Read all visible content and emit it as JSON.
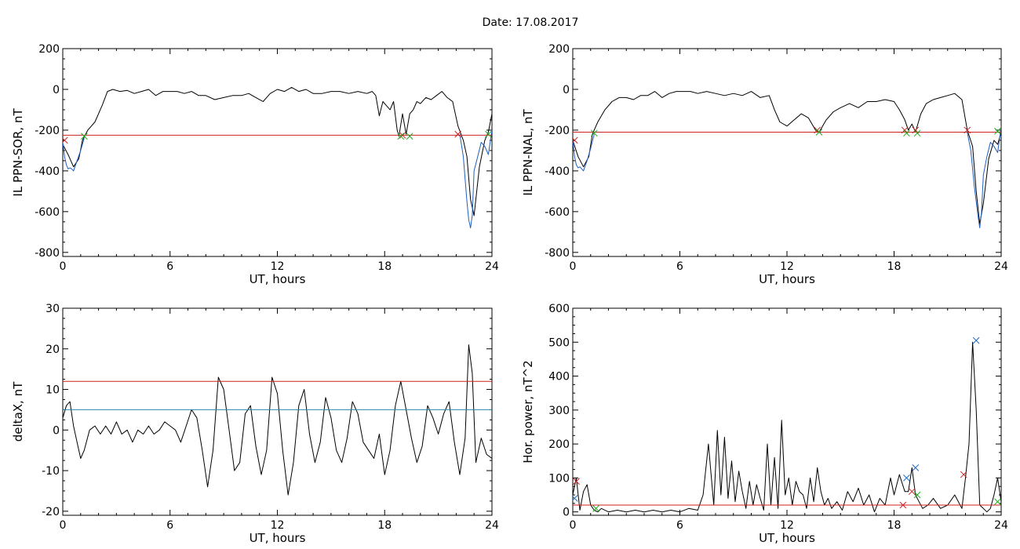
{
  "title": "Date:  17.08.2017",
  "chart_data": [
    {
      "id": "p1",
      "type": "line",
      "xlabel": "UT, hours",
      "ylabel": "IL PPN-SOR, nT",
      "xlim": [
        0,
        24
      ],
      "ylim": [
        -820,
        200
      ],
      "xticks": [
        0,
        6,
        12,
        18,
        24
      ],
      "yticks": [
        200,
        0,
        -200,
        -400,
        -600,
        -800
      ],
      "series": [
        {
          "color": "#000000",
          "x": [
            0,
            0.3,
            0.6,
            0.9,
            1.1,
            1.4,
            1.8,
            2.2,
            2.5,
            2.8,
            3.2,
            3.6,
            4.0,
            4.4,
            4.8,
            5.2,
            5.6,
            6.0,
            6.4,
            6.8,
            7.2,
            7.6,
            8.0,
            8.5,
            9.0,
            9.5,
            10.0,
            10.4,
            10.8,
            11.2,
            11.6,
            12.0,
            12.4,
            12.8,
            13.2,
            13.6,
            14.0,
            14.5,
            15.0,
            15.5,
            16.0,
            16.5,
            17.0,
            17.3,
            17.5,
            17.7,
            17.9,
            18.1,
            18.3,
            18.5,
            18.7,
            18.8,
            19.0,
            19.2,
            19.4,
            19.6,
            19.8,
            20.0,
            20.3,
            20.6,
            20.9,
            21.2,
            21.5,
            21.8,
            22.1,
            22.4,
            22.6,
            22.8,
            23.0,
            23.3,
            23.6,
            23.8,
            24.0
          ],
          "y": [
            -270,
            -320,
            -380,
            -340,
            -250,
            -200,
            -160,
            -80,
            -10,
            0,
            -10,
            -5,
            -20,
            -10,
            0,
            -30,
            -10,
            -10,
            -10,
            -20,
            -10,
            -30,
            -30,
            -50,
            -40,
            -30,
            -30,
            -20,
            -40,
            -60,
            -20,
            0,
            -10,
            10,
            -10,
            0,
            -20,
            -20,
            -10,
            -10,
            -20,
            -10,
            -20,
            -10,
            -30,
            -130,
            -60,
            -80,
            -100,
            -60,
            -200,
            -230,
            -120,
            -220,
            -120,
            -100,
            -60,
            -70,
            -40,
            -50,
            -30,
            -10,
            -40,
            -60,
            -180,
            -250,
            -330,
            -540,
            -620,
            -380,
            -250,
            -210,
            -120
          ]
        },
        {
          "color": "#1f5fbf",
          "x": [
            0,
            0.1,
            0.2,
            0.3,
            0.4,
            0.5,
            0.6,
            0.8,
            1.0,
            1.2
          ],
          "y": [
            -260,
            -330,
            -370,
            -390,
            -385,
            -390,
            -400,
            -350,
            -300,
            -240
          ]
        },
        {
          "color": "#1f5fbf",
          "x": [
            22.2,
            22.4,
            22.6,
            22.7,
            22.8,
            22.9,
            23.0,
            23.2,
            23.4,
            23.6,
            23.8,
            23.9,
            24.0
          ],
          "y": [
            -220,
            -330,
            -550,
            -640,
            -680,
            -620,
            -400,
            -330,
            -260,
            -280,
            -320,
            -260,
            -200
          ]
        },
        {
          "color": "#cc2222",
          "x": [
            0,
            24
          ],
          "y": [
            -225,
            -225
          ]
        }
      ],
      "markers": [
        {
          "color": "#cc2222",
          "x": [
            0.1,
            19.0,
            22.1
          ],
          "y": [
            -250,
            -225,
            -220
          ]
        },
        {
          "color": "#22aa22",
          "x": [
            1.2,
            18.9,
            19.4,
            23.8
          ],
          "y": [
            -230,
            -230,
            -230,
            -220
          ]
        }
      ]
    },
    {
      "id": "p2",
      "type": "line",
      "xlabel": "UT, hours",
      "ylabel": "IL PPN-NAL, nT",
      "xlim": [
        0,
        24
      ],
      "ylim": [
        -820,
        200
      ],
      "xticks": [
        0,
        6,
        12,
        18,
        24
      ],
      "yticks": [
        200,
        0,
        -200,
        -400,
        -600,
        -800
      ],
      "series": [
        {
          "color": "#000000",
          "x": [
            0,
            0.3,
            0.6,
            0.9,
            1.1,
            1.4,
            1.8,
            2.2,
            2.6,
            3.0,
            3.4,
            3.8,
            4.2,
            4.6,
            5.0,
            5.4,
            5.8,
            6.2,
            6.6,
            7.0,
            7.5,
            8.0,
            8.5,
            9.0,
            9.5,
            10.0,
            10.5,
            11.0,
            11.3,
            11.6,
            12.0,
            12.4,
            12.8,
            13.2,
            13.6,
            13.8,
            14.2,
            14.6,
            15.0,
            15.5,
            16.0,
            16.5,
            17.0,
            17.5,
            18.0,
            18.3,
            18.6,
            18.8,
            19.0,
            19.2,
            19.5,
            19.8,
            20.2,
            20.6,
            21.0,
            21.4,
            21.8,
            22.1,
            22.4,
            22.6,
            22.8,
            23.0,
            23.3,
            23.6,
            23.8,
            24.0
          ],
          "y": [
            -250,
            -330,
            -380,
            -330,
            -220,
            -160,
            -100,
            -60,
            -40,
            -40,
            -50,
            -30,
            -30,
            -10,
            -40,
            -20,
            -10,
            -10,
            -10,
            -20,
            -10,
            -20,
            -30,
            -20,
            -30,
            -10,
            -40,
            -30,
            -100,
            -160,
            -180,
            -150,
            -120,
            -140,
            -200,
            -210,
            -150,
            -110,
            -90,
            -70,
            -90,
            -60,
            -60,
            -50,
            -60,
            -100,
            -150,
            -200,
            -170,
            -210,
            -120,
            -70,
            -50,
            -40,
            -30,
            -20,
            -50,
            -200,
            -280,
            -500,
            -660,
            -560,
            -340,
            -250,
            -270,
            -210
          ]
        },
        {
          "color": "#1f5fbf",
          "x": [
            0,
            0.1,
            0.2,
            0.3,
            0.4,
            0.5,
            0.6,
            0.8,
            1.0,
            1.2
          ],
          "y": [
            -250,
            -330,
            -370,
            -385,
            -380,
            -390,
            -400,
            -350,
            -290,
            -220
          ]
        },
        {
          "color": "#1f5fbf",
          "x": [
            22.1,
            22.3,
            22.5,
            22.7,
            22.8,
            22.9,
            23.0,
            23.2,
            23.4,
            23.6,
            23.8,
            23.9,
            24.0
          ],
          "y": [
            -210,
            -300,
            -480,
            -620,
            -680,
            -600,
            -420,
            -330,
            -260,
            -280,
            -310,
            -250,
            -180
          ]
        },
        {
          "color": "#cc2222",
          "x": [
            0,
            24
          ],
          "y": [
            -210,
            -210
          ]
        }
      ],
      "markers": [
        {
          "color": "#cc2222",
          "x": [
            0.1,
            13.7,
            18.6,
            19.2,
            22.1
          ],
          "y": [
            -250,
            -200,
            -200,
            -200,
            -200
          ]
        },
        {
          "color": "#22aa22",
          "x": [
            1.2,
            13.8,
            18.7,
            19.3,
            23.8
          ],
          "y": [
            -215,
            -210,
            -215,
            -215,
            -205
          ]
        }
      ]
    },
    {
      "id": "p3",
      "type": "line",
      "xlabel": "UT, hours",
      "ylabel": "deltaX, nT",
      "xlim": [
        0,
        24
      ],
      "ylim": [
        -21,
        30
      ],
      "xticks": [
        0,
        6,
        12,
        18,
        24
      ],
      "yticks": [
        30,
        20,
        10,
        0,
        -10,
        -20
      ],
      "series": [
        {
          "color": "#000000",
          "x": [
            0,
            0.2,
            0.4,
            0.6,
            0.8,
            1.0,
            1.2,
            1.5,
            1.8,
            2.1,
            2.4,
            2.7,
            3.0,
            3.3,
            3.6,
            3.9,
            4.2,
            4.5,
            4.8,
            5.1,
            5.4,
            5.7,
            6.0,
            6.3,
            6.6,
            6.9,
            7.2,
            7.5,
            7.8,
            8.1,
            8.4,
            8.7,
            9.0,
            9.3,
            9.6,
            9.9,
            10.2,
            10.5,
            10.8,
            11.1,
            11.4,
            11.7,
            12.0,
            12.3,
            12.6,
            12.9,
            13.2,
            13.5,
            13.8,
            14.1,
            14.4,
            14.7,
            15.0,
            15.3,
            15.6,
            15.9,
            16.2,
            16.5,
            16.8,
            17.1,
            17.4,
            17.7,
            18.0,
            18.3,
            18.6,
            18.9,
            19.2,
            19.5,
            19.8,
            20.1,
            20.4,
            20.7,
            21.0,
            21.3,
            21.6,
            21.9,
            22.2,
            22.5,
            22.7,
            22.9,
            23.1,
            23.4,
            23.7,
            24.0
          ],
          "y": [
            3,
            6,
            7,
            1,
            -3,
            -7,
            -5,
            0,
            1,
            -1,
            1,
            -1,
            2,
            -1,
            0,
            -3,
            0,
            -1,
            1,
            -1,
            0,
            2,
            1,
            0,
            -3,
            1,
            5,
            3,
            -5,
            -14,
            -5,
            13,
            10,
            0,
            -10,
            -8,
            4,
            6,
            -4,
            -11,
            -5,
            13,
            9,
            -5,
            -16,
            -8,
            6,
            10,
            -1,
            -8,
            -3,
            8,
            3,
            -5,
            -8,
            -2,
            7,
            4,
            -3,
            -5,
            -7,
            -1,
            -11,
            -5,
            6,
            12,
            5,
            -2,
            -8,
            -4,
            6,
            3,
            -1,
            4,
            7,
            -3,
            -11,
            -2,
            21,
            14,
            -8,
            -2,
            -6,
            -7
          ]
        },
        {
          "color": "#cc2222",
          "x": [
            0,
            24
          ],
          "y": [
            12,
            12
          ]
        },
        {
          "color": "#2a8aa0",
          "x": [
            0,
            24
          ],
          "y": [
            5,
            5
          ]
        }
      ],
      "markers": []
    },
    {
      "id": "p4",
      "type": "line",
      "xlabel": "UT, hours",
      "ylabel": "Hor. power, nT^2",
      "xlim": [
        0,
        24
      ],
      "ylim": [
        -10,
        600
      ],
      "xticks": [
        0,
        6,
        12,
        18,
        24
      ],
      "yticks": [
        600,
        500,
        400,
        300,
        200,
        100,
        0
      ],
      "series": [
        {
          "color": "#000000",
          "x": [
            0,
            0.2,
            0.4,
            0.6,
            0.8,
            1.0,
            1.2,
            1.4,
            1.6,
            2.0,
            2.5,
            3.0,
            3.5,
            4.0,
            4.5,
            5.0,
            5.5,
            6.0,
            6.5,
            7.0,
            7.3,
            7.6,
            7.9,
            8.1,
            8.3,
            8.5,
            8.7,
            8.9,
            9.1,
            9.3,
            9.5,
            9.7,
            9.9,
            10.1,
            10.3,
            10.5,
            10.7,
            10.9,
            11.1,
            11.3,
            11.5,
            11.7,
            11.9,
            12.1,
            12.3,
            12.5,
            12.7,
            12.9,
            13.1,
            13.3,
            13.5,
            13.7,
            13.9,
            14.1,
            14.3,
            14.5,
            14.8,
            15.1,
            15.4,
            15.7,
            16.0,
            16.3,
            16.6,
            16.9,
            17.2,
            17.5,
            17.8,
            18.0,
            18.3,
            18.6,
            18.8,
            19.0,
            19.2,
            19.4,
            19.6,
            19.9,
            20.2,
            20.6,
            21.0,
            21.4,
            21.8,
            22.0,
            22.2,
            22.4,
            22.6,
            22.8,
            23.0,
            23.2,
            23.4,
            23.6,
            23.8,
            24.0
          ],
          "y": [
            50,
            100,
            5,
            60,
            80,
            20,
            5,
            0,
            10,
            0,
            5,
            0,
            5,
            0,
            5,
            0,
            5,
            0,
            10,
            5,
            50,
            200,
            20,
            240,
            50,
            220,
            40,
            150,
            30,
            120,
            60,
            10,
            90,
            20,
            80,
            40,
            5,
            200,
            20,
            160,
            10,
            270,
            50,
            100,
            20,
            90,
            60,
            50,
            10,
            100,
            30,
            130,
            60,
            20,
            40,
            10,
            30,
            5,
            60,
            30,
            70,
            20,
            50,
            0,
            40,
            20,
            100,
            50,
            110,
            60,
            60,
            130,
            50,
            30,
            10,
            20,
            40,
            10,
            20,
            50,
            10,
            100,
            200,
            500,
            300,
            20,
            10,
            0,
            10,
            50,
            100,
            30
          ]
        },
        {
          "color": "#cc2222",
          "x": [
            0,
            24
          ],
          "y": [
            20,
            20
          ]
        }
      ],
      "markers": [
        {
          "color": "#cc2222",
          "x": [
            0.2,
            18.5,
            19.0,
            21.9
          ],
          "y": [
            90,
            20,
            60,
            110
          ]
        },
        {
          "color": "#22aa22",
          "x": [
            1.3,
            19.3,
            23.8
          ],
          "y": [
            10,
            50,
            30
          ]
        },
        {
          "color": "#1f6fbf",
          "x": [
            0.1,
            18.7,
            19.2,
            22.6
          ],
          "y": [
            40,
            100,
            130,
            505
          ]
        }
      ]
    }
  ]
}
